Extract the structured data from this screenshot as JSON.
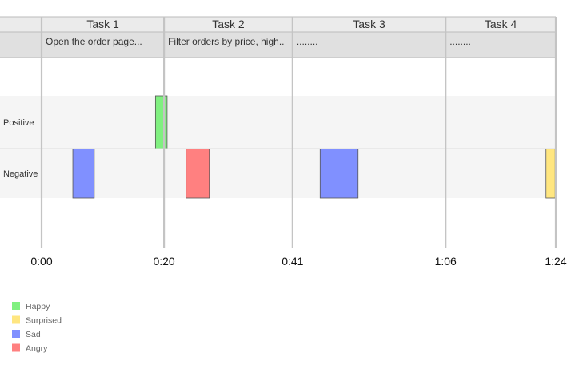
{
  "chart_data": {
    "type": "timeline",
    "tasks": [
      {
        "name": "Task 1",
        "description": "Open the order page...",
        "start": 0,
        "end": 20
      },
      {
        "name": "Task 2",
        "description": "Filter orders by price, high..",
        "start": 20,
        "end": 41
      },
      {
        "name": "Task 3",
        "description": "........",
        "start": 41,
        "end": 66
      },
      {
        "name": "Task 4",
        "description": "........",
        "start": 66,
        "end": 84
      }
    ],
    "rows": [
      "Positive",
      "Negative"
    ],
    "x_ticks": [
      {
        "value": 0,
        "label": "0:00"
      },
      {
        "value": 20,
        "label": "0:20"
      },
      {
        "value": 41,
        "label": "0:41"
      },
      {
        "value": 66,
        "label": "1:06"
      },
      {
        "value": 84,
        "label": "1:24"
      }
    ],
    "xlim": [
      0,
      84
    ],
    "events": [
      {
        "emotion": "Happy",
        "row": "Positive",
        "start": 18.6,
        "end": 20.5
      },
      {
        "emotion": "Sad",
        "row": "Negative",
        "start": 5.1,
        "end": 8.6
      },
      {
        "emotion": "Angry",
        "row": "Negative",
        "start": 23.6,
        "end": 27.4
      },
      {
        "emotion": "Sad",
        "row": "Negative",
        "start": 45.5,
        "end": 51.7
      },
      {
        "emotion": "Surprised",
        "row": "Negative",
        "start": 82.4,
        "end": 83.9
      }
    ],
    "legend": [
      {
        "label": "Happy",
        "color": "#80f080"
      },
      {
        "label": "Surprised",
        "color": "#ffe680"
      },
      {
        "label": "Sad",
        "color": "#8090ff"
      },
      {
        "label": "Angry",
        "color": "#ff8080"
      }
    ]
  }
}
